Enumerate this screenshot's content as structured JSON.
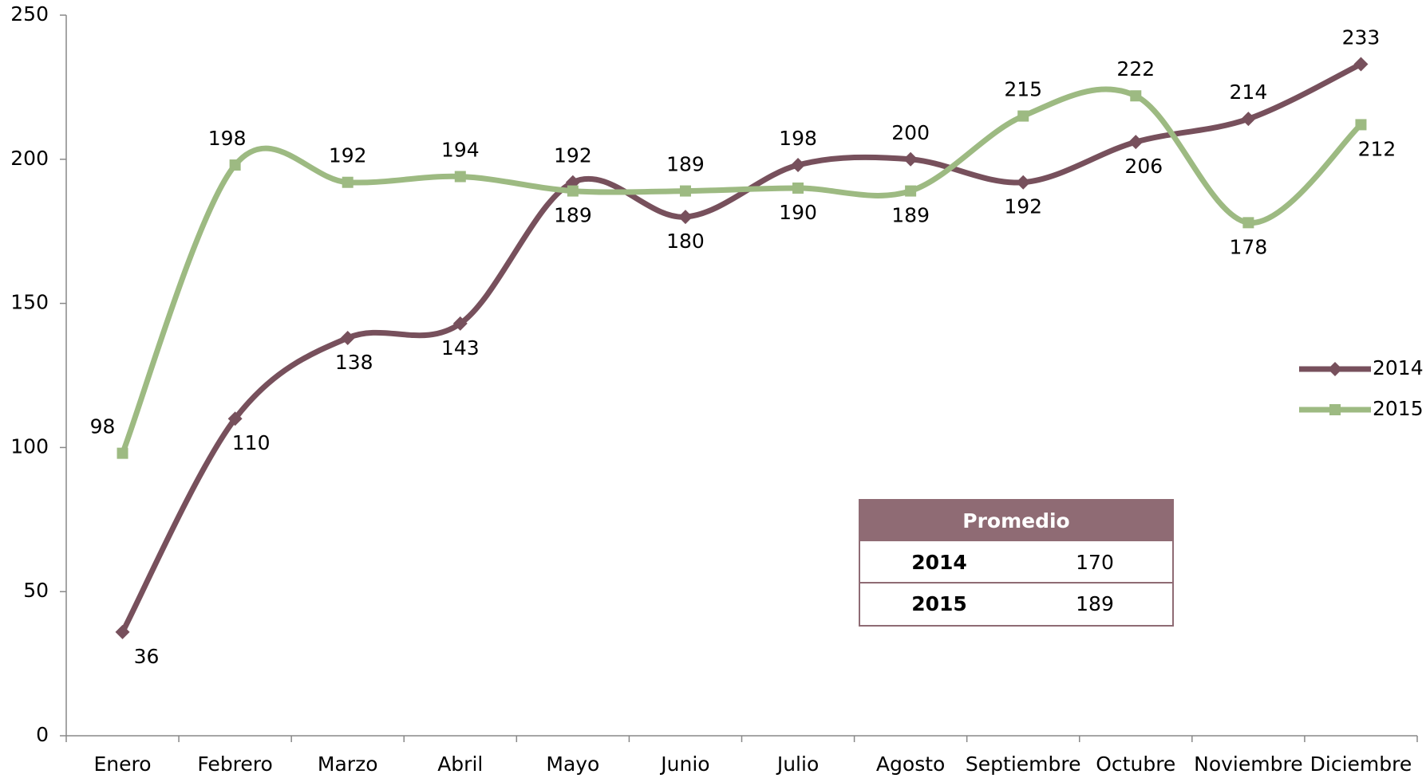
{
  "chart_data": {
    "type": "line",
    "categories": [
      "Enero",
      "Febrero",
      "Marzo",
      "Abril",
      "Mayo",
      "Junio",
      "Julio",
      "Agosto",
      "Septiembre",
      "Octubre",
      "Noviembre",
      "Diciembre"
    ],
    "series": [
      {
        "name": "2014",
        "color": "#77505c",
        "marker": "diamond",
        "values": [
          36,
          110,
          138,
          143,
          192,
          180,
          198,
          200,
          192,
          206,
          214,
          233
        ]
      },
      {
        "name": "2015",
        "color": "#9dba82",
        "marker": "square",
        "values": [
          98,
          198,
          192,
          194,
          189,
          189,
          190,
          189,
          215,
          222,
          178,
          212
        ]
      }
    ],
    "ylim": [
      0,
      250
    ],
    "yticks": [
      0,
      50,
      100,
      150,
      200,
      250
    ],
    "legend": "right",
    "smooth": true
  },
  "table": {
    "title": "Promedio",
    "rows": [
      [
        "2014",
        "170"
      ],
      [
        "2015",
        "189"
      ]
    ]
  }
}
